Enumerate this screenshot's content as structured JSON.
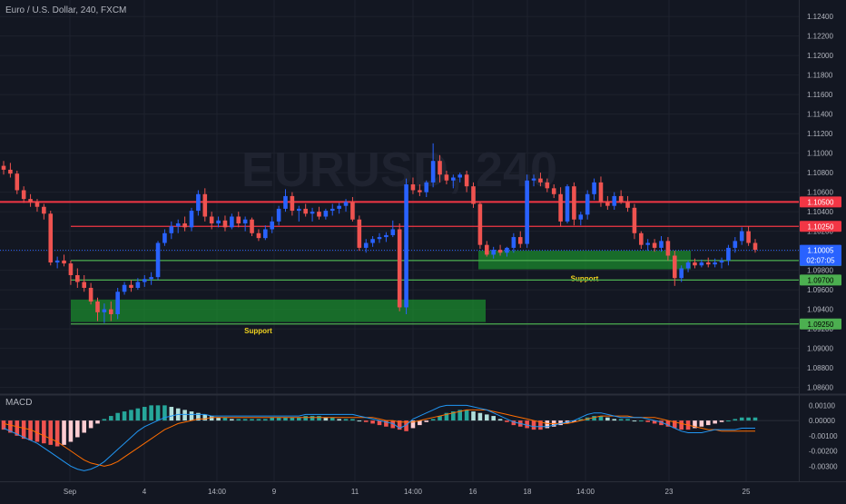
{
  "header": {
    "title": "Euro / U.S. Dollar, 240, FXCM"
  },
  "watermark": {
    "text": "EURUSD, 240"
  },
  "price_axis": {
    "min": 1.0855,
    "max": 1.1255,
    "ticks": [
      "1.12400",
      "1.12200",
      "1.12000",
      "1.11800",
      "1.11600",
      "1.11400",
      "1.11200",
      "1.11000",
      "1.10800",
      "1.10600",
      "1.10400",
      "1.10200",
      "1.10000",
      "1.09800",
      "1.09600",
      "1.09400",
      "1.09200",
      "1.09000",
      "1.08800",
      "1.08600"
    ]
  },
  "time_axis": {
    "labels": [
      "Sep",
      "4",
      "14:00",
      "9",
      "11",
      "14:00",
      "16",
      "18",
      "14:00",
      "23",
      "25"
    ]
  },
  "levels": [
    {
      "price": 1.105,
      "label": "1.10500",
      "color": "#f23645"
    },
    {
      "price": 1.1025,
      "label": "1.10250",
      "color": "#f23645"
    },
    {
      "price": 1.099,
      "label": "1.09900",
      "color": "#4caf50"
    },
    {
      "price": 1.097,
      "label": "1.09700",
      "color": "#4caf50"
    },
    {
      "price": 1.0925,
      "label": "1.09250",
      "color": "#4caf50"
    }
  ],
  "current_price": {
    "value": 1.10005,
    "label": "1.10005",
    "countdown": "02:07:05",
    "color": "#2962ff"
  },
  "support_zones": [
    {
      "label": "Support",
      "price_top": 1.095,
      "price_bottom": 1.0927
    },
    {
      "label": "Support",
      "price_top": 1.1,
      "price_bottom": 1.0981
    }
  ],
  "macd": {
    "title": "MACD",
    "min": -0.004,
    "max": 0.0015,
    "ticks": [
      "0.00100",
      "0.00000",
      "-0.00100",
      "-0.00200",
      "-0.00300"
    ]
  },
  "colors": {
    "up": "#2962ff",
    "down": "#ef5350",
    "bg": "#131722",
    "grid": "#1e222d",
    "text": "#b2b5be"
  },
  "chart_data": {
    "type": "candlestick",
    "symbol": "EURUSD",
    "timeframe": "240",
    "candles": [
      [
        1.1087,
        1.1092,
        1.1078,
        1.1083
      ],
      [
        1.1083,
        1.109,
        1.1075,
        1.1079
      ],
      [
        1.1079,
        1.1082,
        1.1058,
        1.1062
      ],
      [
        1.1062,
        1.1066,
        1.1049,
        1.1053
      ],
      [
        1.1053,
        1.1058,
        1.1045,
        1.105
      ],
      [
        1.105,
        1.1053,
        1.104,
        1.1045
      ],
      [
        1.1045,
        1.1048,
        1.1032,
        1.1038
      ],
      [
        1.1038,
        1.1041,
        1.0985,
        1.0988
      ],
      [
        1.0988,
        1.0994,
        1.0982,
        1.099
      ],
      [
        1.099,
        1.0996,
        1.0984,
        1.0987
      ],
      [
        1.0987,
        1.099,
        1.0965,
        1.0975
      ],
      [
        1.0975,
        1.0982,
        1.0962,
        1.0968
      ],
      [
        1.0968,
        1.0975,
        1.0958,
        1.0962
      ],
      [
        1.0962,
        1.0967,
        1.0945,
        1.0948
      ],
      [
        1.0948,
        1.0952,
        1.0928,
        1.0937
      ],
      [
        1.0937,
        1.0946,
        1.0926,
        1.094
      ],
      [
        1.094,
        1.0948,
        1.0928,
        1.0935
      ],
      [
        1.0935,
        1.0962,
        1.093,
        1.0958
      ],
      [
        1.0958,
        1.0968,
        1.0955,
        1.0965
      ],
      [
        1.0965,
        1.097,
        1.0958,
        1.0962
      ],
      [
        1.0962,
        1.0972,
        1.096,
        1.0968
      ],
      [
        1.0968,
        1.0975,
        1.0963,
        1.0971
      ],
      [
        1.0971,
        1.0978,
        1.0965,
        1.0973
      ],
      [
        1.0973,
        1.101,
        1.097,
        1.1008
      ],
      [
        1.1008,
        1.1022,
        1.1005,
        1.1018
      ],
      [
        1.1018,
        1.103,
        1.1012,
        1.1025
      ],
      [
        1.1025,
        1.1032,
        1.1018,
        1.1028
      ],
      [
        1.1028,
        1.1035,
        1.102,
        1.1024
      ],
      [
        1.1024,
        1.1044,
        1.102,
        1.1041
      ],
      [
        1.1041,
        1.1062,
        1.1036,
        1.1058
      ],
      [
        1.1058,
        1.1064,
        1.103,
        1.1035
      ],
      [
        1.1035,
        1.104,
        1.1022,
        1.1028
      ],
      [
        1.1028,
        1.1035,
        1.1024,
        1.1031
      ],
      [
        1.1031,
        1.1036,
        1.102,
        1.1024
      ],
      [
        1.1024,
        1.1038,
        1.1022,
        1.1035
      ],
      [
        1.1035,
        1.104,
        1.1024,
        1.1028
      ],
      [
        1.1028,
        1.1035,
        1.102,
        1.1032
      ],
      [
        1.1032,
        1.1034,
        1.1015,
        1.1018
      ],
      [
        1.1018,
        1.1022,
        1.101,
        1.1013
      ],
      [
        1.1013,
        1.1026,
        1.1011,
        1.1022
      ],
      [
        1.1022,
        1.1035,
        1.1018,
        1.103
      ],
      [
        1.103,
        1.1046,
        1.1026,
        1.1043
      ],
      [
        1.1043,
        1.1063,
        1.104,
        1.1056
      ],
      [
        1.1056,
        1.106,
        1.1036,
        1.1041
      ],
      [
        1.1041,
        1.1046,
        1.103,
        1.1043
      ],
      [
        1.1043,
        1.1048,
        1.1035,
        1.1038
      ],
      [
        1.1038,
        1.1044,
        1.103,
        1.104
      ],
      [
        1.104,
        1.1045,
        1.1032,
        1.1035
      ],
      [
        1.1035,
        1.1043,
        1.1032,
        1.1041
      ],
      [
        1.1041,
        1.1048,
        1.1036,
        1.1043
      ],
      [
        1.1043,
        1.1049,
        1.1038,
        1.1046
      ],
      [
        1.1046,
        1.1053,
        1.104,
        1.105
      ],
      [
        1.105,
        1.1055,
        1.103,
        1.1032
      ],
      [
        1.1032,
        1.1036,
        1.1,
        1.1003
      ],
      [
        1.1003,
        1.1012,
        1.0998,
        1.1008
      ],
      [
        1.1008,
        1.1015,
        1.1004,
        1.1012
      ],
      [
        1.1012,
        1.1018,
        1.1008,
        1.1014
      ],
      [
        1.1014,
        1.1019,
        1.1009,
        1.1016
      ],
      [
        1.1016,
        1.1031,
        1.1014,
        1.1022
      ],
      [
        1.1022,
        1.1028,
        1.0938,
        1.0942
      ],
      [
        1.0942,
        1.1074,
        1.0935,
        1.1068
      ],
      [
        1.1068,
        1.1075,
        1.1058,
        1.1062
      ],
      [
        1.1062,
        1.1068,
        1.1056,
        1.106
      ],
      [
        1.106,
        1.1072,
        1.1055,
        1.107
      ],
      [
        1.107,
        1.111,
        1.1065,
        1.1092
      ],
      [
        1.1092,
        1.1098,
        1.107,
        1.1078
      ],
      [
        1.1078,
        1.1082,
        1.1068,
        1.1072
      ],
      [
        1.1072,
        1.1078,
        1.1064,
        1.1075
      ],
      [
        1.1075,
        1.108,
        1.107,
        1.1078
      ],
      [
        1.1078,
        1.1082,
        1.106,
        1.1066
      ],
      [
        1.1066,
        1.107,
        1.1044,
        1.1048
      ],
      [
        1.1048,
        1.105,
        1.1002,
        1.1006
      ],
      [
        1.1006,
        1.101,
        1.0994,
        1.0996
      ],
      [
        1.0996,
        1.1004,
        1.0992,
        1.1001
      ],
      [
        1.1001,
        1.1006,
        1.0995,
        1.0998
      ],
      [
        1.0998,
        1.1004,
        1.0994,
        1.1003
      ],
      [
        1.1003,
        1.1018,
        1.0998,
        1.1014
      ],
      [
        1.1014,
        1.102,
        1.1003,
        1.1007
      ],
      [
        1.1007,
        1.1078,
        1.1003,
        1.1072
      ],
      [
        1.1072,
        1.1078,
        1.1066,
        1.1074
      ],
      [
        1.1074,
        1.108,
        1.1066,
        1.107
      ],
      [
        1.107,
        1.1074,
        1.106,
        1.1064
      ],
      [
        1.1064,
        1.1068,
        1.1054,
        1.1058
      ],
      [
        1.1058,
        1.1065,
        1.1025,
        1.103
      ],
      [
        1.103,
        1.1068,
        1.1028,
        1.1066
      ],
      [
        1.1066,
        1.107,
        1.1026,
        1.1032
      ],
      [
        1.1032,
        1.104,
        1.1026,
        1.1037
      ],
      [
        1.1037,
        1.1062,
        1.1032,
        1.1058
      ],
      [
        1.1058,
        1.1074,
        1.1052,
        1.107
      ],
      [
        1.107,
        1.1076,
        1.1045,
        1.105
      ],
      [
        1.105,
        1.1056,
        1.1042,
        1.1046
      ],
      [
        1.1046,
        1.106,
        1.1042,
        1.1056
      ],
      [
        1.1056,
        1.1062,
        1.1048,
        1.105
      ],
      [
        1.105,
        1.1056,
        1.104,
        1.1044
      ],
      [
        1.1044,
        1.1048,
        1.1012,
        1.1018
      ],
      [
        1.1018,
        1.102,
        1.1002,
        1.1006
      ],
      [
        1.1006,
        1.1012,
        1.1,
        1.1008
      ],
      [
        1.1008,
        1.1012,
        1.0999,
        1.1003
      ],
      [
        1.1003,
        1.1015,
        1.0999,
        1.101
      ],
      [
        1.101,
        1.1014,
        1.099,
        1.0995
      ],
      [
        1.0995,
        1.1,
        1.0964,
        1.0972
      ],
      [
        1.0972,
        1.0985,
        1.0968,
        1.0982
      ],
      [
        1.0982,
        1.099,
        1.0978,
        1.0988
      ],
      [
        1.0988,
        1.0992,
        1.0982,
        1.0985
      ],
      [
        1.0985,
        1.0991,
        1.0983,
        1.0988
      ],
      [
        1.0988,
        1.0993,
        1.0983,
        1.0986
      ],
      [
        1.0986,
        1.0992,
        1.0983,
        1.0988
      ],
      [
        1.0988,
        1.0993,
        1.0982,
        1.099
      ],
      [
        1.099,
        1.1006,
        1.0985,
        1.1003
      ],
      [
        1.1003,
        1.1014,
        1.0998,
        1.101
      ],
      [
        1.101,
        1.1024,
        1.1006,
        1.102
      ],
      [
        1.102,
        1.1025,
        1.1005,
        1.1008
      ],
      [
        1.1008,
        1.1012,
        1.0998,
        1.1001
      ]
    ],
    "overlay_lines": [
      1.105,
      1.1025,
      1.099,
      1.097,
      1.0925
    ],
    "macd_histogram": [
      -0.0006,
      -0.0008,
      -0.001,
      -0.0012,
      -0.0013,
      -0.0014,
      -0.0015,
      -0.0016,
      -0.0017,
      -0.0016,
      -0.0014,
      -0.0011,
      -0.0008,
      -0.0005,
      -0.0002,
      0.0001,
      0.0003,
      0.0005,
      0.0006,
      0.0007,
      0.0008,
      0.0009,
      0.001,
      0.001,
      0.001,
      0.0009,
      0.0008,
      0.0007,
      0.0006,
      0.0005,
      0.0004,
      0.0003,
      0.0002,
      0.0002,
      0.0001,
      0.0001,
      0.0001,
      0.0001,
      0.0001,
      0.0001,
      0.0002,
      0.0002,
      0.0002,
      0.0002,
      0.0002,
      0.0003,
      0.0003,
      0.0003,
      0.0002,
      0.0002,
      0.0001,
      0.0001,
      0.0001,
      0.0,
      -0.0001,
      -0.0002,
      -0.0003,
      -0.0004,
      -0.0005,
      -0.0006,
      -0.0007,
      -0.0005,
      -0.0003,
      -0.0001,
      0.0001,
      0.0003,
      0.0005,
      0.0006,
      0.0007,
      0.0007,
      0.0006,
      0.0005,
      0.0004,
      0.0003,
      0.0001,
      -0.0001,
      -0.0003,
      -0.0004,
      -0.0005,
      -0.0006,
      -0.0006,
      -0.0005,
      -0.0004,
      -0.0003,
      -0.0002,
      -0.0001,
      0.0001,
      0.0002,
      0.0003,
      0.0003,
      0.0002,
      0.0001,
      0.0001,
      0.0001,
      0.0,
      0.0,
      -0.0001,
      -0.0002,
      -0.0003,
      -0.0004,
      -0.0005,
      -0.0006,
      -0.0006,
      -0.0005,
      -0.0004,
      -0.0003,
      -0.0002,
      -0.0001,
      0.0,
      0.0001,
      0.0002,
      0.0002,
      0.0002
    ],
    "macd_line": [
      -0.0005,
      -0.0007,
      -0.0009,
      -0.0011,
      -0.0013,
      -0.0015,
      -0.0018,
      -0.0021,
      -0.0024,
      -0.0027,
      -0.003,
      -0.0032,
      -0.0033,
      -0.0032,
      -0.003,
      -0.0027,
      -0.0023,
      -0.0019,
      -0.0015,
      -0.0011,
      -0.0007,
      -0.0004,
      -0.0002,
      0.0,
      0.0002,
      0.0003,
      0.0004,
      0.0004,
      0.0004,
      0.0004,
      0.0004,
      0.0003,
      0.0003,
      0.0003,
      0.0003,
      0.0003,
      0.0003,
      0.0003,
      0.0003,
      0.0003,
      0.0003,
      0.0003,
      0.0003,
      0.0003,
      0.0003,
      0.0004,
      0.0004,
      0.0004,
      0.0004,
      0.0004,
      0.0004,
      0.0004,
      0.0004,
      0.0003,
      0.0002,
      0.0001,
      0.0,
      -0.0001,
      -0.0002,
      -0.0005,
      -0.0003,
      0.0001,
      0.0003,
      0.0005,
      0.0007,
      0.0009,
      0.001,
      0.001,
      0.001,
      0.001,
      0.0009,
      0.0008,
      0.0007,
      0.0005,
      0.0003,
      0.0001,
      -0.0001,
      -0.0002,
      -0.0003,
      -0.0004,
      -0.0004,
      -0.0004,
      -0.0003,
      -0.0002,
      -0.0001,
      0.0,
      0.0002,
      0.0004,
      0.0005,
      0.0005,
      0.0004,
      0.0003,
      0.0002,
      0.0002,
      0.0002,
      0.0002,
      0.0001,
      0.0,
      -0.0001,
      -0.0003,
      -0.0005,
      -0.0007,
      -0.0008,
      -0.0008,
      -0.0008,
      -0.0007,
      -0.0006,
      -0.0006,
      -0.0006,
      -0.0006,
      -0.0005,
      -0.0005,
      -0.0005
    ],
    "signal_line": [
      -0.0002,
      -0.0003,
      -0.0004,
      -0.0005,
      -0.0006,
      -0.0008,
      -0.001,
      -0.0012,
      -0.0014,
      -0.0017,
      -0.002,
      -0.0023,
      -0.0026,
      -0.0028,
      -0.0029,
      -0.003,
      -0.0029,
      -0.0027,
      -0.0024,
      -0.0021,
      -0.0018,
      -0.0015,
      -0.0012,
      -0.0009,
      -0.0006,
      -0.0004,
      -0.0002,
      -0.0001,
      0.0,
      0.0001,
      0.0001,
      0.0002,
      0.0002,
      0.0002,
      0.0002,
      0.0002,
      0.0002,
      0.0002,
      0.0002,
      0.0002,
      0.0002,
      0.0002,
      0.0002,
      0.0002,
      0.0002,
      0.0002,
      0.0002,
      0.0002,
      0.0002,
      0.0002,
      0.0002,
      0.0002,
      0.0002,
      0.0002,
      0.0002,
      0.0002,
      0.0001,
      0.0,
      0.0,
      -0.0001,
      -0.0001,
      -0.0001,
      0.0,
      0.0001,
      0.0002,
      0.0003,
      0.0004,
      0.0005,
      0.0006,
      0.0007,
      0.0007,
      0.0007,
      0.0007,
      0.0006,
      0.0005,
      0.0004,
      0.0003,
      0.0002,
      0.0001,
      0.0,
      -0.0001,
      -0.0002,
      -0.0002,
      -0.0002,
      -0.0002,
      -0.0001,
      0.0,
      0.0001,
      0.0002,
      0.0003,
      0.0003,
      0.0003,
      0.0003,
      0.0003,
      0.0002,
      0.0002,
      0.0002,
      0.0002,
      0.0001,
      0.0,
      -0.0001,
      -0.0002,
      -0.0003,
      -0.0004,
      -0.0005,
      -0.0006,
      -0.0006,
      -0.0007,
      -0.0007,
      -0.0007,
      -0.0007,
      -0.0007,
      -0.0007
    ]
  }
}
